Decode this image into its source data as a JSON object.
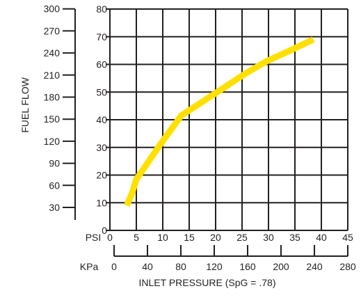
{
  "chart_data": {
    "type": "line",
    "title": "",
    "xlabel": "INLET PRESSURE (SpG = .78)",
    "ylabel": "FUEL FLOW",
    "left_axis": {
      "ticks": [
        "30",
        "60",
        "90",
        "120",
        "150",
        "180",
        "210",
        "240",
        "270",
        "300"
      ]
    },
    "y_axis": {
      "ticks": [
        "0",
        "10",
        "20",
        "30",
        "40",
        "50",
        "60",
        "70",
        "80"
      ],
      "ylim": [
        0,
        80
      ]
    },
    "x_axis": {
      "unit": "PSI",
      "ticks": [
        "0",
        "5",
        "10",
        "15",
        "20",
        "25",
        "30",
        "35",
        "40",
        "45"
      ],
      "xlim": [
        0,
        45
      ]
    },
    "x_axis_secondary": {
      "unit": "KPa",
      "ticks": [
        "0",
        "40",
        "80",
        "120",
        "160",
        "200",
        "240",
        "280"
      ]
    },
    "grid": true,
    "series": [
      {
        "color": "#ffe000",
        "x": [
          3.2,
          4.2,
          5.0,
          7.0,
          9.5,
          13.5,
          17.5,
          21.5,
          25.5,
          29.5,
          33.5,
          38.5
        ],
        "y": [
          9.0,
          13.5,
          18.5,
          24.0,
          31.0,
          41.5,
          46.5,
          51.5,
          56.5,
          61.0,
          64.5,
          69.0
        ]
      }
    ]
  }
}
